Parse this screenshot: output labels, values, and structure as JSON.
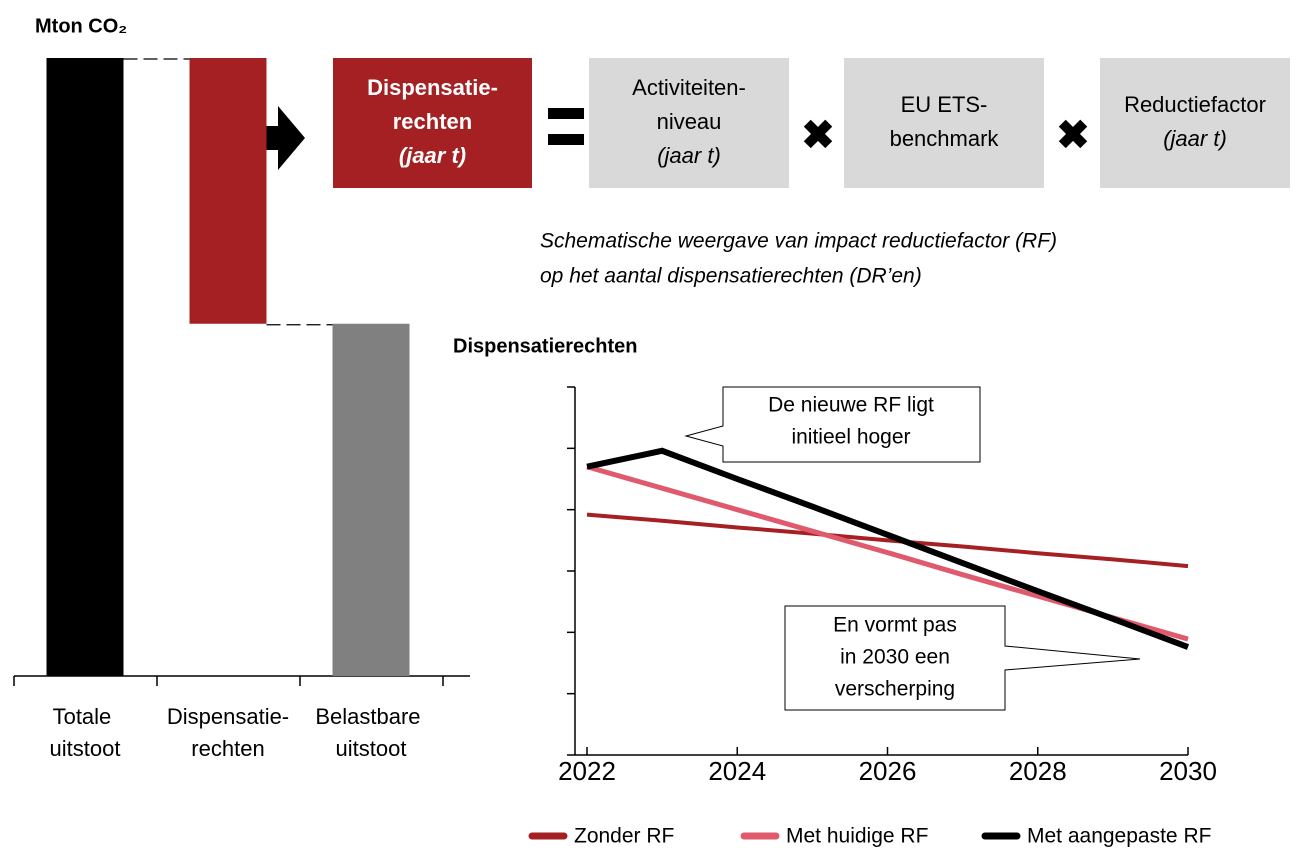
{
  "chart_data": [
    {
      "type": "waterfall",
      "title": "Mton CO₂",
      "categories": [
        "Totale uitstoot",
        "Dispensatie-rechten",
        "Belastbare uitstoot"
      ],
      "values": [
        100,
        43,
        57
      ],
      "colors": [
        "#000000",
        "#a52022",
        "#808080"
      ],
      "ylim": [
        0,
        100
      ]
    },
    {
      "type": "line",
      "title": "Dispensatierechten",
      "x": [
        2022,
        2023,
        2024,
        2025,
        2026,
        2027,
        2028,
        2029,
        2030
      ],
      "xlim": [
        2022,
        2030
      ],
      "xticks": [
        2022,
        2024,
        2026,
        2028,
        2030
      ],
      "ylim": [
        0,
        6
      ],
      "yticks": [
        0,
        1,
        2,
        3,
        4,
        5,
        6
      ],
      "series": [
        {
          "name": "Zonder RF",
          "color": "#a52022",
          "values": [
            3.92,
            3.82,
            3.71,
            3.61,
            3.5,
            3.4,
            3.29,
            3.19,
            3.08
          ]
        },
        {
          "name": "Met huidige RF",
          "color": "#e05a6e",
          "values": [
            4.7,
            4.35,
            4.0,
            3.65,
            3.3,
            2.94,
            2.59,
            2.24,
            1.89
          ]
        },
        {
          "name": "Met aangepaste RF",
          "color": "#000000",
          "values": [
            4.7,
            4.96,
            4.5,
            4.05,
            3.59,
            3.13,
            2.67,
            2.22,
            1.76
          ]
        }
      ],
      "annotations": [
        {
          "lines": [
            "De nieuwe RF ligt",
            "initieel hoger"
          ]
        },
        {
          "lines": [
            "En vormt pas",
            "in 2030 een",
            "verscherping"
          ]
        }
      ]
    }
  ],
  "diagram": {
    "boxes": [
      {
        "lines": [
          "Dispensatie-",
          "rechten"
        ],
        "note": "(jaar t)"
      },
      {
        "lines": [
          "Activiteiten-",
          "niveau"
        ],
        "note": "(jaar t)"
      },
      {
        "lines": [
          "EU ETS-",
          "benchmark"
        ]
      },
      {
        "lines": [
          "Reductiefactor"
        ],
        "note": "(jaar t)"
      }
    ],
    "caption": [
      "Schematische weergave van impact reductiefactor (RF)",
      "op het aantal dispensatierechten (DR’en)"
    ]
  }
}
